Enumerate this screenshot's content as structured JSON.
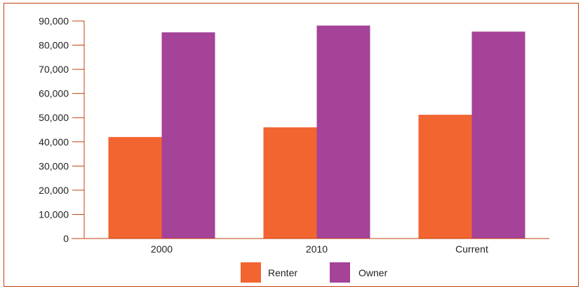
{
  "chart_data": {
    "type": "bar",
    "categories": [
      "2000",
      "2010",
      "Current"
    ],
    "series": [
      {
        "name": "Renter",
        "values": [
          42000,
          46000,
          51200
        ],
        "color": "#f26531"
      },
      {
        "name": "Owner",
        "values": [
          85300,
          88100,
          85600
        ],
        "color": "#a44397"
      }
    ],
    "ylim": [
      0,
      90000
    ],
    "yticks": [
      0,
      10000,
      20000,
      30000,
      40000,
      50000,
      60000,
      70000,
      80000,
      90000
    ],
    "ytick_labels": [
      "0",
      "10,000",
      "20,000",
      "30,000",
      "40,000",
      "50,000",
      "60,000",
      "70,000",
      "80,000",
      "90,000"
    ],
    "axis_color": "#c2410c",
    "grid": false,
    "legend_position": "bottom-center"
  }
}
